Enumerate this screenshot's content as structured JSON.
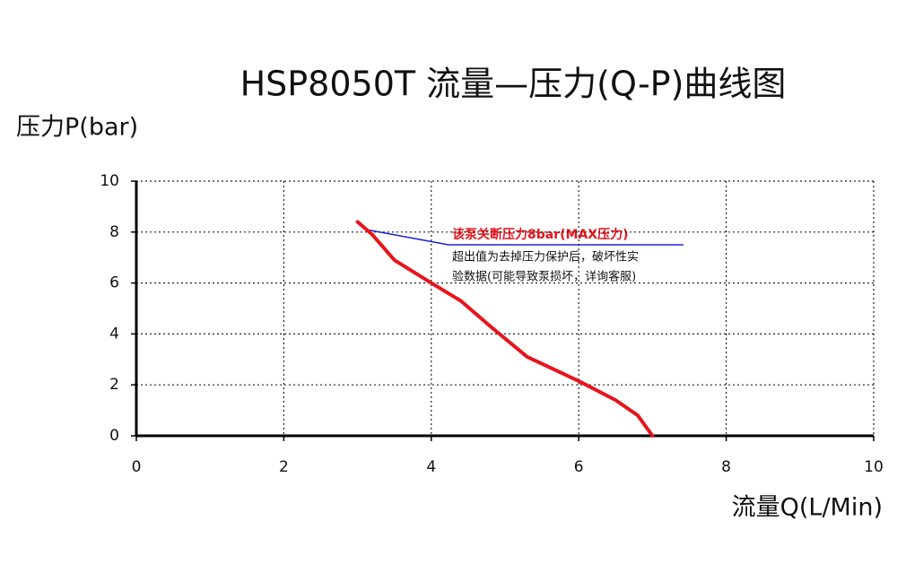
{
  "chart_data": {
    "type": "line",
    "title": "HSP8050T 流量—压力(Q-P)曲线图",
    "y_label": "压力P(bar)",
    "x_label": "流量Q(L/Min)",
    "x": [
      3.0,
      3.2,
      3.5,
      4.0,
      4.4,
      4.8,
      5.3,
      6.0,
      6.5,
      6.8,
      7.0
    ],
    "series": [
      {
        "color": "#e8141b",
        "values": [
          8.4,
          7.9,
          6.9,
          6.0,
          5.3,
          4.3,
          3.1,
          2.15,
          1.4,
          0.8,
          0
        ]
      }
    ],
    "xlim": [
      0,
      10
    ],
    "ylim": [
      0,
      10
    ],
    "xticks": [
      0,
      2,
      4,
      6,
      8,
      10
    ],
    "yticks": [
      0,
      2,
      4,
      6,
      8,
      10
    ],
    "grid": true,
    "annotations": [
      "该泵关断压力8bar(MAX压力)",
      "超出值为去掉压力保护后，破坏性实",
      "验数据(可能导致泵损坏，详询客服)"
    ]
  }
}
